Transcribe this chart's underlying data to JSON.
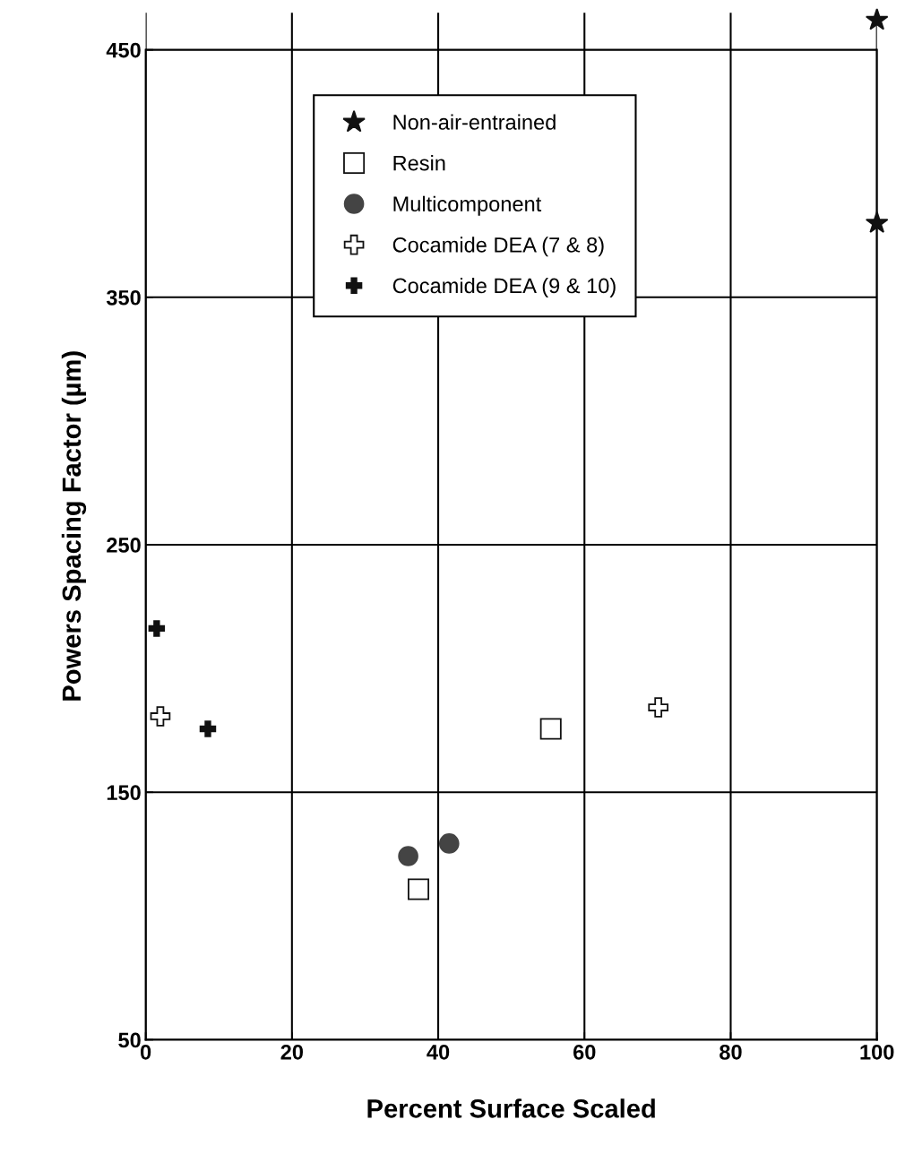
{
  "chart_data": {
    "type": "scatter",
    "xlabel": "Percent Surface Scaled",
    "ylabel": "Powers Spacing Factor (µm)",
    "xlim": [
      0,
      100
    ],
    "ylim": [
      50,
      465
    ],
    "xticks": [
      0,
      20,
      40,
      60,
      80,
      100
    ],
    "yticks": [
      50,
      150,
      250,
      350,
      450
    ],
    "grid": true,
    "legend": "top",
    "series": [
      {
        "name": "Non-air-entrained",
        "color": "#111111",
        "marker": "star",
        "x": [
          100,
          100
        ],
        "values": [
          462,
          380
        ]
      },
      {
        "name": "Resin",
        "color": "#111111",
        "marker": "square",
        "x": [
          55.4,
          37.3
        ],
        "values": [
          175.6,
          110.8
        ]
      },
      {
        "name": "Multicomponent",
        "color": "#444444",
        "marker": "circle",
        "x": [
          35.9,
          41.5
        ],
        "values": [
          124.2,
          129.3
        ]
      },
      {
        "name": "Cocamide DEA (7 & 8)",
        "color": "#111111",
        "marker": "cross",
        "x": [
          2.0,
          70.1
        ],
        "values": [
          180.7,
          184.3
        ]
      },
      {
        "name": "Cocamide DEA (9 & 10)",
        "color": "#111111",
        "marker": "cross",
        "x": [
          1.5,
          8.5
        ],
        "values": [
          216.2,
          175.6
        ]
      }
    ]
  }
}
